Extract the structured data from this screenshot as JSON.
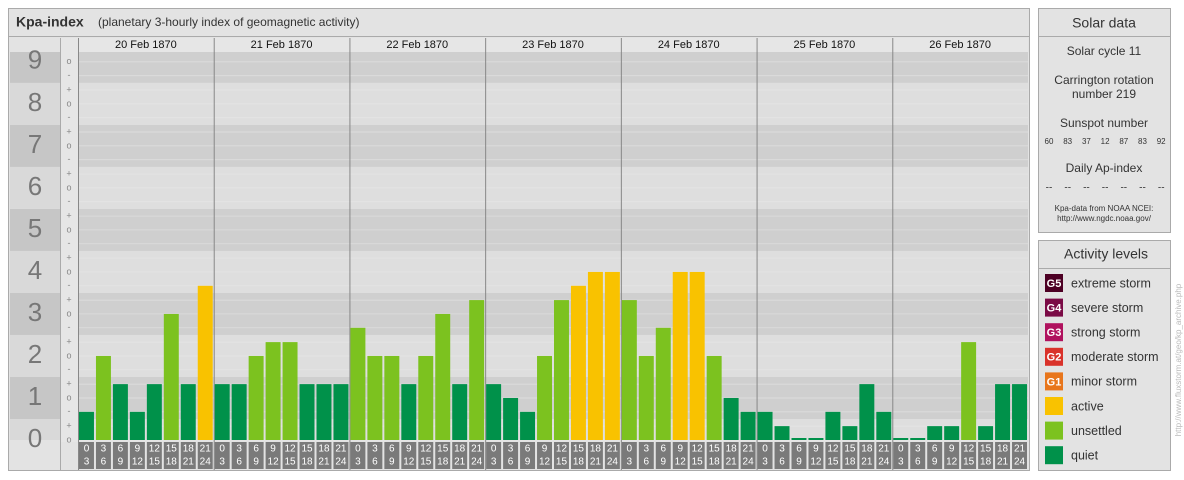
{
  "chart_data": {
    "type": "bar",
    "title": "Kpa-index",
    "subtitle": "(planetary 3-hourly index of geomagnetic activity)",
    "days": [
      "20 Feb 1870",
      "21 Feb 1870",
      "22 Feb 1870",
      "23 Feb 1870",
      "24 Feb 1870",
      "25 Feb 1870",
      "26 Feb 1870"
    ],
    "time_slots": [
      {
        "start": 0,
        "end": 3
      },
      {
        "start": 3,
        "end": 6
      },
      {
        "start": 6,
        "end": 9
      },
      {
        "start": 9,
        "end": 12
      },
      {
        "start": 12,
        "end": 15
      },
      {
        "start": 15,
        "end": 18
      },
      {
        "start": 18,
        "end": 21
      },
      {
        "start": 21,
        "end": 24
      }
    ],
    "values": [
      0.67,
      2,
      1.33,
      0.67,
      1.33,
      3,
      1.33,
      3.67,
      1.33,
      1.33,
      2,
      2.33,
      2.33,
      1.33,
      1.33,
      1.33,
      2.67,
      2,
      2,
      1.33,
      2,
      3,
      1.33,
      3.33,
      1.33,
      1,
      0.67,
      2,
      3.33,
      3.67,
      4,
      4,
      3.33,
      2,
      2.67,
      4,
      4,
      2,
      1,
      0.67,
      0.67,
      0.33,
      0,
      0,
      0.67,
      0.33,
      1.33,
      0.67,
      0,
      0,
      0.33,
      0.33,
      2.33,
      0.33,
      1.33,
      1.33
    ],
    "colors": [
      "#00914a",
      "#7cc21f",
      "#00914a",
      "#00914a",
      "#00914a",
      "#7cc21f",
      "#00914a",
      "#f9c200",
      "#00914a",
      "#00914a",
      "#7cc21f",
      "#7cc21f",
      "#7cc21f",
      "#00914a",
      "#00914a",
      "#00914a",
      "#7cc21f",
      "#7cc21f",
      "#7cc21f",
      "#00914a",
      "#7cc21f",
      "#7cc21f",
      "#00914a",
      "#7cc21f",
      "#00914a",
      "#00914a",
      "#00914a",
      "#7cc21f",
      "#7cc21f",
      "#f9c200",
      "#f9c200",
      "#f9c200",
      "#7cc21f",
      "#7cc21f",
      "#7cc21f",
      "#f9c200",
      "#f9c200",
      "#7cc21f",
      "#00914a",
      "#00914a",
      "#00914a",
      "#00914a",
      "#00914a",
      "#00914a",
      "#00914a",
      "#00914a",
      "#00914a",
      "#00914a",
      "#00914a",
      "#00914a",
      "#00914a",
      "#00914a",
      "#7cc21f",
      "#00914a",
      "#00914a",
      "#00914a"
    ],
    "ylim": [
      0,
      9.33
    ],
    "yticks": [
      0,
      1,
      2,
      3,
      4,
      5,
      6,
      7,
      8,
      9
    ],
    "yminor_ticks": [
      {
        "value": 0,
        "label": "o"
      },
      {
        "value": 0.33,
        "label": "+"
      },
      {
        "value": 0.67,
        "label": "-"
      },
      {
        "value": 1,
        "label": "o"
      },
      {
        "value": 1.33,
        "label": "+"
      },
      {
        "value": 1.67,
        "label": "-"
      },
      {
        "value": 2,
        "label": "o"
      },
      {
        "value": 2.33,
        "label": "+"
      },
      {
        "value": 2.67,
        "label": "-"
      },
      {
        "value": 3,
        "label": "o"
      },
      {
        "value": 3.33,
        "label": "+"
      },
      {
        "value": 3.67,
        "label": "-"
      },
      {
        "value": 4,
        "label": "o"
      },
      {
        "value": 4.33,
        "label": "+"
      },
      {
        "value": 4.67,
        "label": "-"
      },
      {
        "value": 5,
        "label": "o"
      },
      {
        "value": 5.33,
        "label": "+"
      },
      {
        "value": 5.67,
        "label": "-"
      },
      {
        "value": 6,
        "label": "o"
      },
      {
        "value": 6.33,
        "label": "+"
      },
      {
        "value": 6.67,
        "label": "-"
      },
      {
        "value": 7,
        "label": "o"
      },
      {
        "value": 7.33,
        "label": "+"
      },
      {
        "value": 7.67,
        "label": "-"
      },
      {
        "value": 8,
        "label": "o"
      },
      {
        "value": 8.33,
        "label": "+"
      },
      {
        "value": 8.67,
        "label": "-"
      },
      {
        "value": 9,
        "label": "o"
      }
    ],
    "grid": true
  },
  "solar_data": {
    "title": "Solar data",
    "solar_cycle": "Solar cycle 11",
    "carrington_line1": "Carrington rotation",
    "carrington_line2": "number 219",
    "sunspot_title": "Sunspot number",
    "sunspot_numbers": [
      60,
      83,
      37,
      12,
      87,
      83,
      92
    ],
    "ap_title": "Daily Ap-index",
    "ap_values": [
      "--",
      "--",
      "--",
      "--",
      "--",
      "--",
      "--"
    ],
    "source_line1": "Kpa-data from NOAA NCEI:",
    "source_line2": "http://www.ngdc.noaa.gov/"
  },
  "activity_levels": {
    "title": "Activity levels",
    "items": [
      {
        "badge": "G5",
        "name": "extreme storm",
        "color": "#4d0024"
      },
      {
        "badge": "G4",
        "name": "severe storm",
        "color": "#7a0a45"
      },
      {
        "badge": "G3",
        "name": "strong storm",
        "color": "#b0125e"
      },
      {
        "badge": "G2",
        "name": "moderate storm",
        "color": "#d9322a"
      },
      {
        "badge": "G1",
        "name": "minor storm",
        "color": "#e8761c"
      },
      {
        "name": "active",
        "color": "#f9c200"
      },
      {
        "name": "unsettled",
        "color": "#7cc21f"
      },
      {
        "name": "quiet",
        "color": "#00914a"
      }
    ]
  },
  "source_url": "http://www.fluxstorm.at/geo/kp_archive.php"
}
